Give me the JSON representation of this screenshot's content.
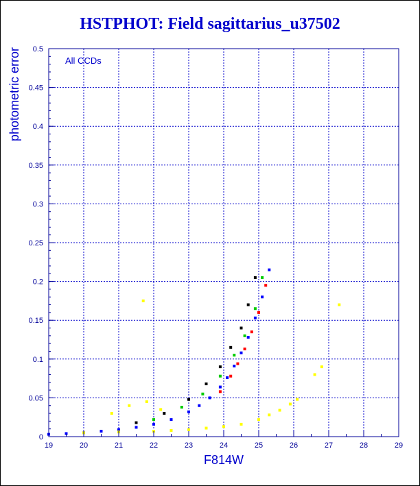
{
  "chart_data": {
    "type": "scatter",
    "title": "HSTPHOT: Field sagittarius_u37502",
    "xlabel": "F814W",
    "ylabel": "photometric error",
    "annotation": "All CCDs",
    "xlim": [
      19,
      29
    ],
    "ylim": [
      0,
      0.5
    ],
    "xticks": [
      "19",
      "20",
      "21",
      "22",
      "23",
      "24",
      "25",
      "26",
      "27",
      "28",
      "29"
    ],
    "yticks": [
      "0",
      "0.05",
      "0.1",
      "0.15",
      "0.2",
      "0.25",
      "0.3",
      "0.35",
      "0.4",
      "0.45",
      "0.5"
    ],
    "grid": true,
    "colors": {
      "frame": "#000099",
      "grid": "#0000cc",
      "title": "#0000cc",
      "blue": "#0000ff",
      "red": "#ff0000",
      "green": "#00cc00",
      "black": "#000000",
      "yellow": "#ffff00"
    },
    "series": [
      {
        "color": "blue",
        "x": [
          19.0,
          19.5,
          20.0,
          20.5,
          21.0,
          21.5,
          22.0,
          22.5,
          23.0,
          23.3,
          23.6,
          23.9,
          24.1,
          24.3,
          24.5,
          24.7,
          24.9,
          25.1,
          25.3
        ],
        "y": [
          0.003,
          0.004,
          0.005,
          0.007,
          0.009,
          0.012,
          0.016,
          0.022,
          0.032,
          0.04,
          0.05,
          0.064,
          0.076,
          0.091,
          0.108,
          0.128,
          0.153,
          0.18,
          0.215
        ]
      },
      {
        "color": "red",
        "x": [
          23.9,
          24.2,
          24.4,
          24.6,
          24.8,
          25.0,
          25.2
        ],
        "y": [
          0.058,
          0.078,
          0.094,
          0.113,
          0.135,
          0.16,
          0.195
        ]
      },
      {
        "color": "green",
        "x": [
          22.0,
          22.8,
          23.4,
          23.9,
          24.3,
          24.6,
          24.9,
          25.1
        ],
        "y": [
          0.022,
          0.038,
          0.055,
          0.078,
          0.105,
          0.13,
          0.165,
          0.205
        ]
      },
      {
        "color": "black",
        "x": [
          21.5,
          22.3,
          23.0,
          23.5,
          23.9,
          24.2,
          24.5,
          24.7,
          24.9
        ],
        "y": [
          0.018,
          0.03,
          0.048,
          0.068,
          0.09,
          0.115,
          0.14,
          0.17,
          0.205
        ]
      },
      {
        "color": "yellow",
        "x": [
          20.0,
          21.0,
          22.0,
          22.5,
          23.0,
          23.5,
          24.0,
          24.5,
          25.0,
          25.3,
          25.6,
          25.9,
          26.1
        ],
        "y": [
          0.005,
          0.006,
          0.007,
          0.008,
          0.009,
          0.011,
          0.013,
          0.016,
          0.022,
          0.028,
          0.034,
          0.042,
          0.048
        ]
      },
      {
        "color": "yellow",
        "x": [
          20.8,
          21.3,
          21.8,
          22.2,
          26.6,
          26.8,
          27.3,
          21.7
        ],
        "y": [
          0.03,
          0.04,
          0.045,
          0.035,
          0.08,
          0.09,
          0.17,
          0.175
        ]
      }
    ]
  }
}
